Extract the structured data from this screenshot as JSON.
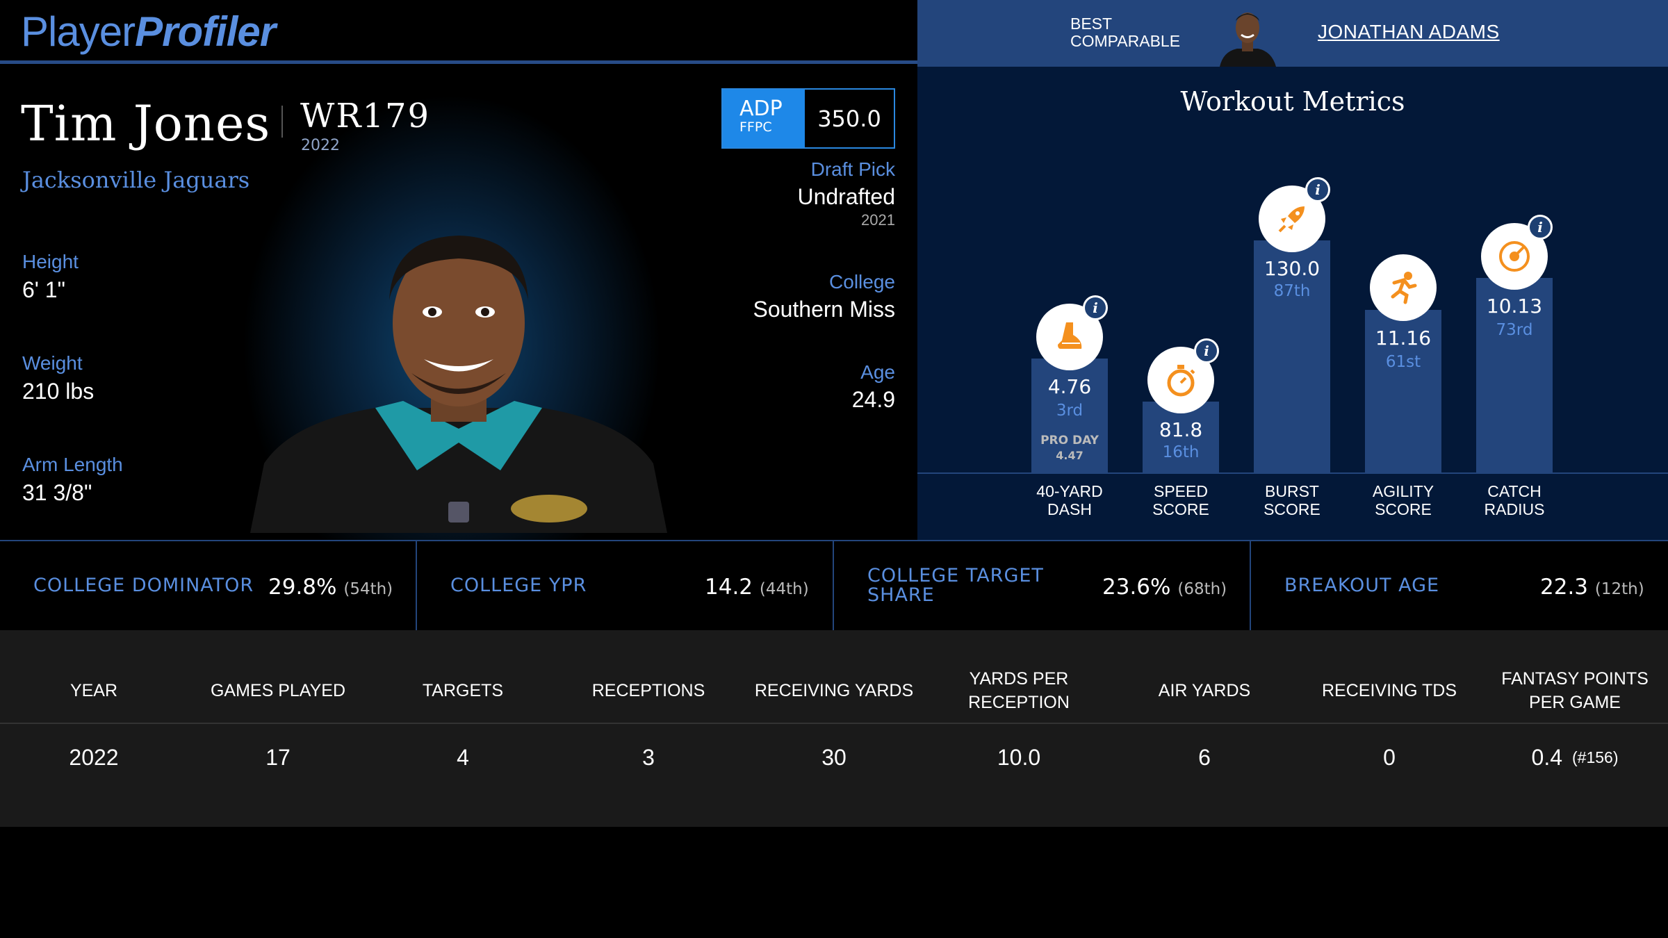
{
  "brand": {
    "part1": "Player",
    "part2": "Profiler"
  },
  "best_comparable": {
    "label_line1": "BEST",
    "label_line2": "COMPARABLE",
    "name": "JONATHAN ADAMS"
  },
  "player": {
    "name": "Tim Jones",
    "position_rank": "WR179",
    "year": "2022",
    "team": "Jacksonville Jaguars",
    "adp": {
      "label": "ADP",
      "source": "FFPC",
      "value": "350.0"
    },
    "height": {
      "label": "Height",
      "value": "6' 1\""
    },
    "weight": {
      "label": "Weight",
      "value": "210 lbs"
    },
    "arm_length": {
      "label": "Arm Length",
      "value": "31 3/8\""
    },
    "draft_pick": {
      "label": "Draft Pick",
      "value": "Undrafted",
      "year": "2021"
    },
    "college": {
      "label": "College",
      "value": "Southern Miss"
    },
    "age": {
      "label": "Age",
      "value": "24.9"
    }
  },
  "workout": {
    "title": "Workout Metrics",
    "metrics": [
      {
        "line1": "40-YARD",
        "line2": "DASH",
        "value": "4.76",
        "rank": "3rd",
        "extra1": "PRO DAY",
        "extra2": "4.47",
        "icon": "shoe-icon",
        "percentile": 3
      },
      {
        "line1": "SPEED",
        "line2": "SCORE",
        "value": "81.8",
        "rank": "16th",
        "icon": "stopwatch-icon",
        "percentile": 16
      },
      {
        "line1": "BURST",
        "line2": "SCORE",
        "value": "130.0",
        "rank": "87th",
        "icon": "rocket-icon",
        "percentile": 87
      },
      {
        "line1": "AGILITY",
        "line2": "SCORE",
        "value": "11.16",
        "rank": "61st",
        "icon": "runner-icon",
        "percentile": 61
      },
      {
        "line1": "CATCH",
        "line2": "RADIUS",
        "value": "10.13",
        "rank": "73rd",
        "icon": "target-icon",
        "percentile": 73
      }
    ]
  },
  "college_stats": [
    {
      "label": "COLLEGE DOMINATOR",
      "value": "29.8%",
      "rank": "(54th)"
    },
    {
      "label": "COLLEGE YPR",
      "value": "14.2",
      "rank": "(44th)"
    },
    {
      "label_line1": "COLLEGE TARGET",
      "label_line2": "SHARE",
      "value": "23.6%",
      "rank": "(68th)"
    },
    {
      "label": "BREAKOUT AGE",
      "value": "22.3",
      "rank": "(12th)"
    }
  ],
  "table": {
    "headers": [
      "YEAR",
      "GAMES PLAYED",
      "TARGETS",
      "RECEPTIONS",
      "RECEIVING YARDS",
      "YARDS PER RECEPTION",
      "AIR YARDS",
      "RECEIVING TDS",
      "FANTASY POINTS PER GAME"
    ],
    "rows": [
      {
        "year": "2022",
        "games": "17",
        "targets": "4",
        "receptions": "3",
        "rec_yards": "30",
        "ypr": "10.0",
        "air_yards": "6",
        "rec_tds": "0",
        "fppg": "0.4",
        "fppg_rank": "(#156)"
      }
    ]
  },
  "colors": {
    "accent": "#5a8fe0",
    "navy": "#23457c",
    "orange": "#f4901e"
  }
}
